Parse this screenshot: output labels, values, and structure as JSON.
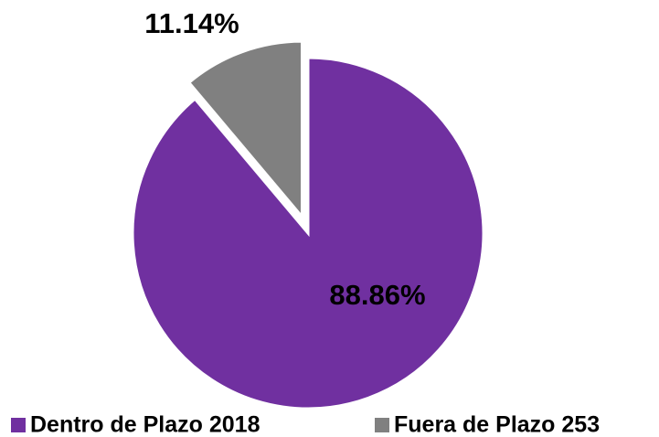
{
  "chart_data": {
    "type": "pie",
    "categories": [
      "Dentro de Plazo 2018",
      "Fuera de Plazo 253"
    ],
    "values": [
      88.86,
      11.14
    ],
    "value_labels": [
      "88.86%",
      "11.14%"
    ],
    "colors": [
      "#7030a0",
      "#808080"
    ],
    "legend": "bottom"
  }
}
